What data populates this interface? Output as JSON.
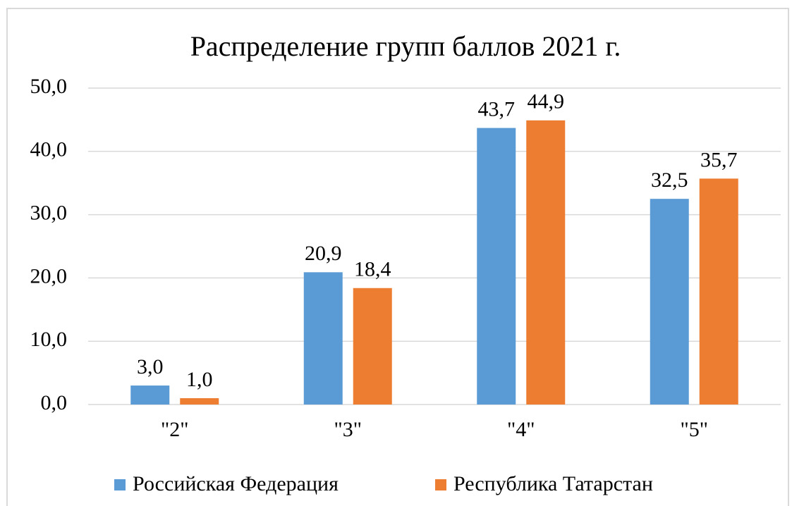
{
  "chart_data": {
    "type": "bar",
    "title": "Распределение групп баллов 2021 г.",
    "categories": [
      "\"2\"",
      "\"3\"",
      "\"4\"",
      "\"5\""
    ],
    "series": [
      {
        "name": "Российская Федерация",
        "color": "#5b9bd5",
        "values": [
          3.0,
          20.9,
          43.7,
          32.5
        ],
        "value_labels": [
          "3,0",
          "20,9",
          "43,7",
          "32,5"
        ]
      },
      {
        "name": "Республика Татарстан",
        "color": "#ed7d31",
        "values": [
          1.0,
          18.4,
          44.9,
          35.7
        ],
        "value_labels": [
          "1,0",
          "18,4",
          "44,9",
          "35,7"
        ]
      }
    ],
    "ylim": [
      0,
      50
    ],
    "yticks": [
      {
        "value": 0,
        "label": "0,0"
      },
      {
        "value": 10,
        "label": "10,0"
      },
      {
        "value": 20,
        "label": "20,0"
      },
      {
        "value": 30,
        "label": "30,0"
      },
      {
        "value": 40,
        "label": "40,0"
      },
      {
        "value": 50,
        "label": "50,0"
      }
    ],
    "grid": true,
    "legend": "bottom"
  }
}
